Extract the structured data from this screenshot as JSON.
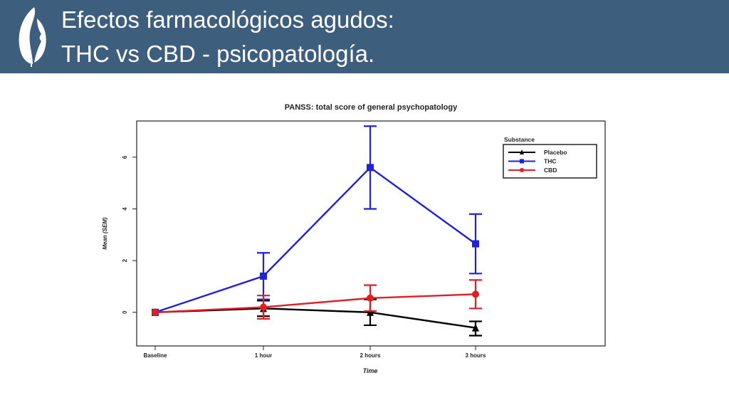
{
  "slide": {
    "title_line1": "Efectos farmacológicos agudos:",
    "title_line2": "THC vs CBD - psicopatología.",
    "logo_icon": "leaf-face-logo-icon"
  },
  "colors": {
    "header": "#3d5f7d",
    "placebo": "#000000",
    "thc": "#1f22d8",
    "cbd": "#e01e26"
  },
  "chart_data": {
    "type": "line",
    "title": "PANSS: total score of general psychopatology",
    "xlabel": "Time",
    "ylabel": "Mean (SEM)",
    "categories": [
      "Baseline",
      "1 hour",
      "2 hours",
      "3 hours"
    ],
    "ylim": [
      -1.3,
      7.4
    ],
    "yticks": [
      0,
      2,
      4,
      6
    ],
    "legend": {
      "title": "Substance",
      "position": "top-right"
    },
    "series": [
      {
        "name": "Placebo",
        "marker": "triangle",
        "color": "#000000",
        "values": [
          0,
          0.15,
          0.0,
          -0.6
        ],
        "lower": [
          0,
          -0.15,
          -0.5,
          -0.9
        ],
        "upper": [
          0,
          0.45,
          0.5,
          -0.35
        ]
      },
      {
        "name": "THC",
        "marker": "square",
        "color": "#1f22d8",
        "values": [
          0,
          1.4,
          5.6,
          2.65
        ],
        "lower": [
          0,
          0.5,
          4.0,
          1.5
        ],
        "upper": [
          0,
          2.3,
          7.2,
          3.8
        ]
      },
      {
        "name": "CBD",
        "marker": "circle",
        "color": "#e01e26",
        "values": [
          0,
          0.2,
          0.55,
          0.7
        ],
        "lower": [
          0,
          -0.25,
          0.05,
          0.15
        ],
        "upper": [
          0,
          0.65,
          1.05,
          1.25
        ]
      }
    ]
  }
}
